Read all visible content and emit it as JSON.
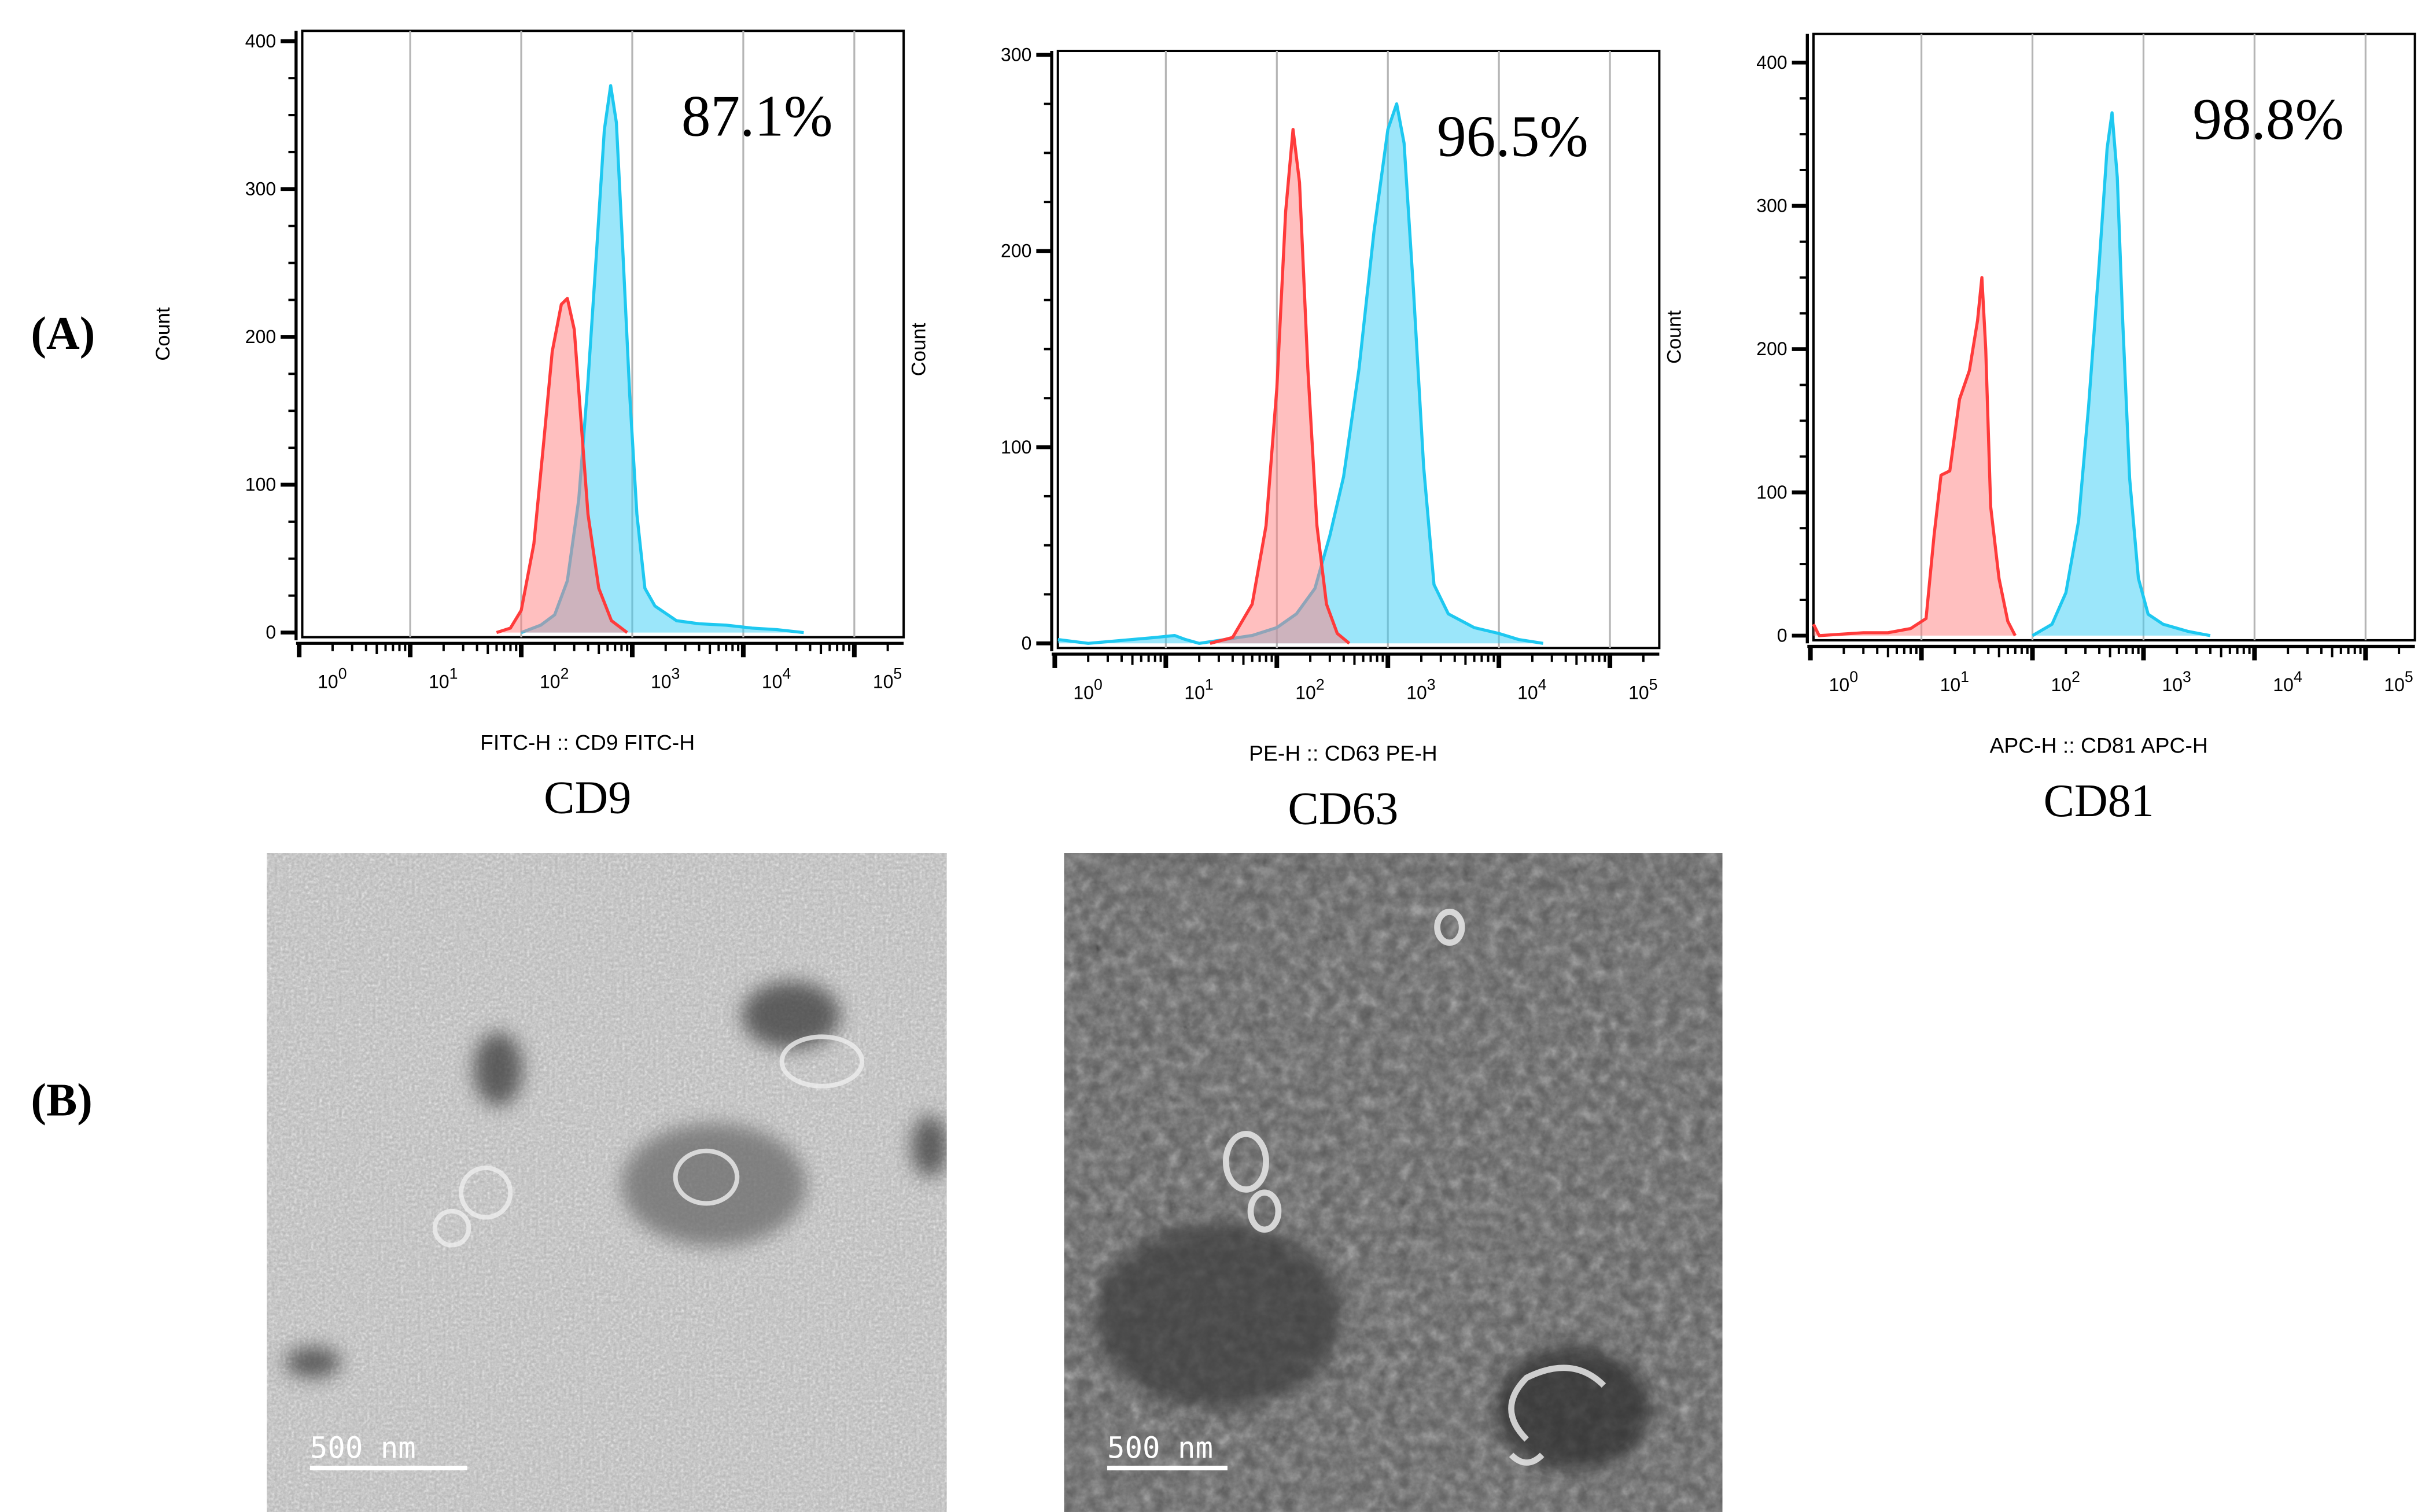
{
  "panel_labels": {
    "a": "(A)",
    "b": "(B)"
  },
  "colors": {
    "isotype_stroke": "#ff3b3b",
    "isotype_fill": "#ff8080",
    "marker_stroke": "#1ec8f0",
    "marker_fill": "#38cdf5"
  },
  "chart_data": [
    {
      "type": "area",
      "title": "CD9",
      "percent_label": "87.1%",
      "xlabel": "FITC-H :: CD9 FITC-H",
      "ylabel": "Count",
      "x_scale": "log",
      "xlim": [
        1,
        275000
      ],
      "ylim": [
        0,
        407
      ],
      "yticks": [
        0,
        100,
        200,
        300,
        400
      ],
      "xtick_labels": [
        {
          "base": "10",
          "exp": "0"
        },
        {
          "base": "10",
          "exp": "1"
        },
        {
          "base": "10",
          "exp": "2"
        },
        {
          "base": "10",
          "exp": "3"
        },
        {
          "base": "10",
          "exp": "4"
        },
        {
          "base": "10",
          "exp": "5"
        }
      ],
      "grid": "vertical at decades",
      "series": [
        {
          "role": "isotype",
          "color": "#ff3b3b",
          "points": [
            [
              60,
              0
            ],
            [
              80,
              3
            ],
            [
              100,
              15
            ],
            [
              130,
              60
            ],
            [
              160,
              130
            ],
            [
              190,
              190
            ],
            [
              230,
              222
            ],
            [
              260,
              226
            ],
            [
              300,
              205
            ],
            [
              340,
              150
            ],
            [
              400,
              80
            ],
            [
              500,
              30
            ],
            [
              650,
              8
            ],
            [
              900,
              0
            ]
          ]
        },
        {
          "role": "marker",
          "color": "#1ec8f0",
          "points": [
            [
              100,
              0
            ],
            [
              150,
              5
            ],
            [
              200,
              12
            ],
            [
              260,
              35
            ],
            [
              330,
              90
            ],
            [
              400,
              170
            ],
            [
              480,
              260
            ],
            [
              560,
              340
            ],
            [
              640,
              370
            ],
            [
              720,
              345
            ],
            [
              820,
              260
            ],
            [
              950,
              160
            ],
            [
              1100,
              80
            ],
            [
              1300,
              30
            ],
            [
              1600,
              18
            ],
            [
              2500,
              8
            ],
            [
              4000,
              6
            ],
            [
              7000,
              5
            ],
            [
              12000,
              3
            ],
            [
              20000,
              2
            ],
            [
              35000,
              0
            ]
          ]
        }
      ]
    },
    {
      "type": "area",
      "title": "CD63",
      "percent_label": "96.5%",
      "xlabel": "PE-H :: CD63 PE-H",
      "ylabel": "Count",
      "x_scale": "log",
      "xlim": [
        1,
        275000
      ],
      "ylim": [
        0,
        302
      ],
      "yticks": [
        0,
        100,
        200,
        300
      ],
      "xtick_labels": [
        {
          "base": "10",
          "exp": "0"
        },
        {
          "base": "10",
          "exp": "1"
        },
        {
          "base": "10",
          "exp": "2"
        },
        {
          "base": "10",
          "exp": "3"
        },
        {
          "base": "10",
          "exp": "4"
        },
        {
          "base": "10",
          "exp": "5"
        }
      ],
      "grid": "vertical at decades",
      "series": [
        {
          "role": "isotype",
          "color": "#ff3b3b",
          "points": [
            [
              25,
              0
            ],
            [
              40,
              3
            ],
            [
              60,
              20
            ],
            [
              80,
              60
            ],
            [
              100,
              130
            ],
            [
              120,
              220
            ],
            [
              140,
              262
            ],
            [
              160,
              235
            ],
            [
              190,
              140
            ],
            [
              230,
              60
            ],
            [
              280,
              20
            ],
            [
              350,
              5
            ],
            [
              450,
              0
            ]
          ]
        },
        {
          "role": "marker",
          "color": "#1ec8f0",
          "points": [
            [
              1,
              2
            ],
            [
              2,
              0
            ],
            [
              8,
              3
            ],
            [
              12,
              4
            ],
            [
              15,
              2
            ],
            [
              20,
              0
            ],
            [
              60,
              4
            ],
            [
              100,
              8
            ],
            [
              150,
              15
            ],
            [
              220,
              28
            ],
            [
              300,
              55
            ],
            [
              400,
              85
            ],
            [
              550,
              140
            ],
            [
              750,
              210
            ],
            [
              1000,
              262
            ],
            [
              1200,
              275
            ],
            [
              1400,
              255
            ],
            [
              1700,
              180
            ],
            [
              2100,
              90
            ],
            [
              2600,
              30
            ],
            [
              3500,
              15
            ],
            [
              6000,
              8
            ],
            [
              10000,
              5
            ],
            [
              15000,
              2
            ],
            [
              25000,
              0
            ]
          ]
        }
      ]
    },
    {
      "type": "area",
      "title": "CD81",
      "percent_label": "98.8%",
      "xlabel": "APC-H :: CD81 APC-H",
      "ylabel": "Count",
      "x_scale": "log",
      "xlim": [
        1,
        275000
      ],
      "ylim": [
        0,
        420
      ],
      "yticks": [
        0,
        100,
        200,
        300,
        400
      ],
      "xtick_labels": [
        {
          "base": "10",
          "exp": "0"
        },
        {
          "base": "10",
          "exp": "1"
        },
        {
          "base": "10",
          "exp": "2"
        },
        {
          "base": "10",
          "exp": "3"
        },
        {
          "base": "10",
          "exp": "4"
        },
        {
          "base": "10",
          "exp": "5"
        }
      ],
      "grid": "vertical at decades",
      "series": [
        {
          "role": "isotype",
          "color": "#ff3b3b",
          "points": [
            [
              1,
              8
            ],
            [
              1.2,
              0
            ],
            [
              3,
              2
            ],
            [
              5,
              2
            ],
            [
              8,
              5
            ],
            [
              11,
              12
            ],
            [
              13,
              70
            ],
            [
              15,
              112
            ],
            [
              18,
              115
            ],
            [
              22,
              165
            ],
            [
              27,
              185
            ],
            [
              32,
              220
            ],
            [
              35,
              250
            ],
            [
              38,
              200
            ],
            [
              42,
              90
            ],
            [
              50,
              40
            ],
            [
              60,
              10
            ],
            [
              70,
              0
            ]
          ]
        },
        {
          "role": "marker",
          "color": "#1ec8f0",
          "points": [
            [
              100,
              0
            ],
            [
              150,
              8
            ],
            [
              200,
              30
            ],
            [
              260,
              80
            ],
            [
              320,
              160
            ],
            [
              400,
              260
            ],
            [
              470,
              340
            ],
            [
              520,
              365
            ],
            [
              580,
              320
            ],
            [
              650,
              220
            ],
            [
              750,
              110
            ],
            [
              900,
              40
            ],
            [
              1100,
              15
            ],
            [
              1500,
              8
            ],
            [
              2500,
              3
            ],
            [
              4000,
              0
            ]
          ]
        }
      ]
    }
  ],
  "tem_images": [
    {
      "scale_bar": "500  nm"
    },
    {
      "scale_bar": "500  nm"
    }
  ]
}
